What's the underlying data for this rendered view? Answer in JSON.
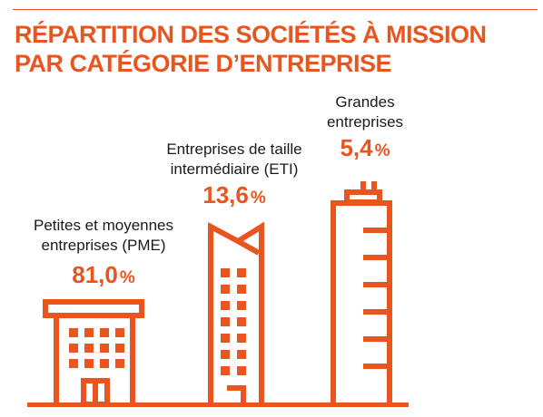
{
  "title": {
    "line1": "RÉPARTITION DES SOCIÉTÉS À MISSION",
    "line2": "PAR CATÉGORIE D’ENTREPRISE"
  },
  "colors": {
    "accent": "#e8551f",
    "text": "#1a1a1a"
  },
  "chart_data": {
    "type": "bar",
    "categories": [
      "Petites et moyennes entreprises (PME)",
      "Entreprises de taille intermédiaire (ETI)",
      "Grandes entreprises"
    ],
    "values": [
      81.0,
      13.6,
      5.4
    ],
    "unit": "%",
    "decimal_separator": ",",
    "icons": [
      "small-building-icon",
      "mid-tower-icon",
      "skyscraper-icon"
    ],
    "labels": [
      {
        "line1": "Petites et moyennes",
        "line2": "entreprises (PME)",
        "value": "81,0",
        "unit": "%"
      },
      {
        "line1": "Entreprises de taille",
        "line2": "intermédiaire (ETI)",
        "value": "13,6",
        "unit": "%"
      },
      {
        "line1": "Grandes",
        "line2": "entreprises",
        "value": "5,4",
        "unit": "%"
      }
    ]
  }
}
